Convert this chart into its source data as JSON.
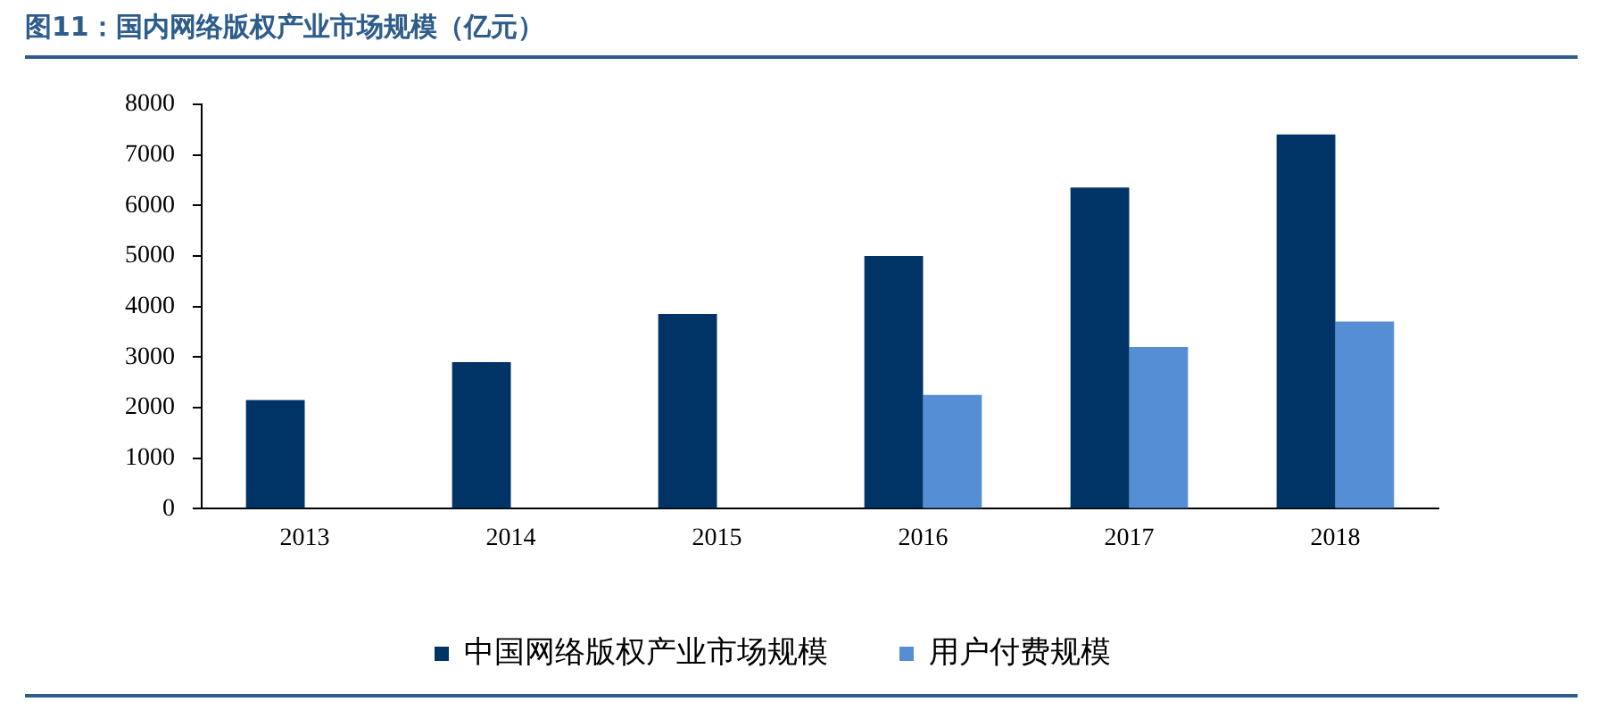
{
  "chart_data": {
    "type": "bar",
    "title": "图11：国内网络版权产业市场规模（亿元）",
    "categories": [
      "2013",
      "2014",
      "2015",
      "2016",
      "2017",
      "2018"
    ],
    "series": [
      {
        "name": "中国网络版权产业市场规模",
        "color": "#003366",
        "values": [
          2150,
          2900,
          3850,
          5000,
          6350,
          7400
        ]
      },
      {
        "name": "用户付费规模",
        "color": "#558ed5",
        "values": [
          null,
          null,
          null,
          2250,
          3200,
          3700
        ]
      }
    ],
    "ylim": [
      0,
      8000
    ],
    "yticks": [
      0,
      1000,
      2000,
      3000,
      4000,
      5000,
      6000,
      7000,
      8000
    ],
    "grid": false,
    "legend": "bottom"
  }
}
